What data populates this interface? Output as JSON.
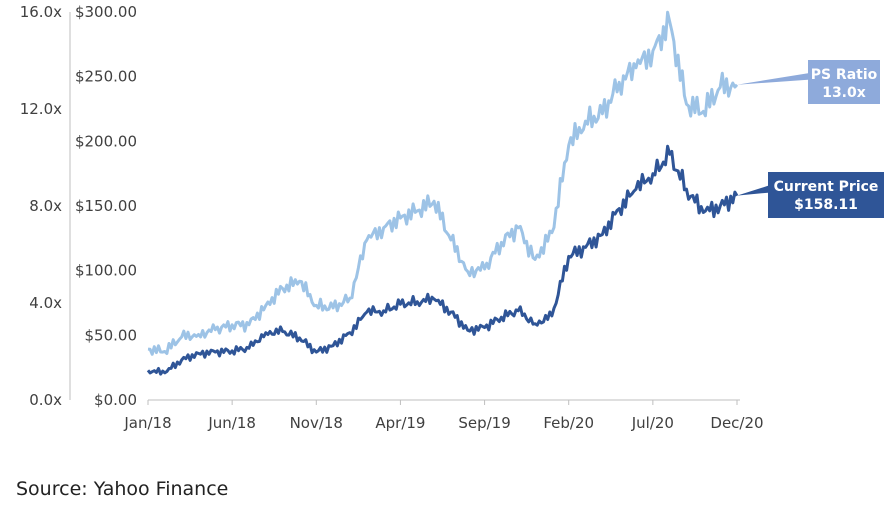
{
  "chart_data": {
    "type": "line",
    "title": "",
    "xlabel": "",
    "ylabel": "",
    "x_ticks": [
      "Jan/18",
      "Jun/18",
      "Nov/18",
      "Apr/19",
      "Sep/19",
      "Feb/20",
      "Jul/20",
      "Dec/20"
    ],
    "y_left": {
      "ticks": [
        "0.0x",
        "4.0x",
        "8.0x",
        "12.0x",
        "16.0x"
      ],
      "range": [
        0,
        16
      ]
    },
    "y_right": {
      "ticks": [
        "$0.00",
        "$50.00",
        "$100.00",
        "$150.00",
        "$200.00",
        "$250.00",
        "$300.00"
      ],
      "range": [
        0,
        300
      ]
    },
    "x_range_months": [
      0,
      35
    ],
    "legend": "callouts",
    "grid": false,
    "series": [
      {
        "axis": "left",
        "color": "#9dc3e6",
        "x": [
          0,
          1,
          2,
          3,
          4,
          5,
          6,
          7,
          8,
          9,
          10,
          11,
          12,
          13,
          14,
          15,
          16,
          17,
          18,
          19,
          20,
          21,
          22,
          23,
          24,
          25,
          26,
          27,
          28,
          29,
          30,
          31,
          32,
          33,
          34,
          35
        ],
        "values": [
          2.1,
          2.0,
          2.6,
          2.7,
          2.9,
          3.1,
          3.1,
          3.9,
          4.6,
          4.9,
          3.9,
          3.8,
          4.2,
          6.6,
          7.1,
          7.5,
          7.8,
          8.2,
          6.6,
          5.3,
          5.4,
          6.5,
          7.1,
          5.8,
          6.9,
          10.5,
          11.5,
          11.8,
          13.1,
          13.7,
          14.4,
          15.6,
          12.2,
          11.9,
          12.9,
          13.0
        ]
      },
      {
        "axis": "right",
        "color": "#2f5597",
        "x": [
          0,
          1,
          2,
          3,
          4,
          5,
          6,
          7,
          8,
          9,
          10,
          11,
          12,
          13,
          14,
          15,
          16,
          17,
          18,
          19,
          20,
          21,
          22,
          23,
          24,
          25,
          26,
          27,
          28,
          29,
          30,
          31,
          32,
          33,
          34,
          35
        ],
        "values": [
          23,
          21,
          31,
          36,
          37,
          38,
          40,
          52,
          53,
          48,
          37,
          42,
          52,
          68,
          69,
          74,
          76,
          78,
          68,
          54,
          56,
          64,
          69,
          59,
          65,
          111,
          118,
          128,
          148,
          163,
          175,
          190,
          163,
          145,
          150,
          158
        ]
      }
    ],
    "callouts": [
      {
        "line1": "PS Ratio",
        "line2": "13.0x",
        "color": "#8eaadb"
      },
      {
        "line1": "Current Price",
        "line2": "$158.11",
        "color": "#2f5597"
      }
    ]
  },
  "source": "Source: Yahoo Finance"
}
